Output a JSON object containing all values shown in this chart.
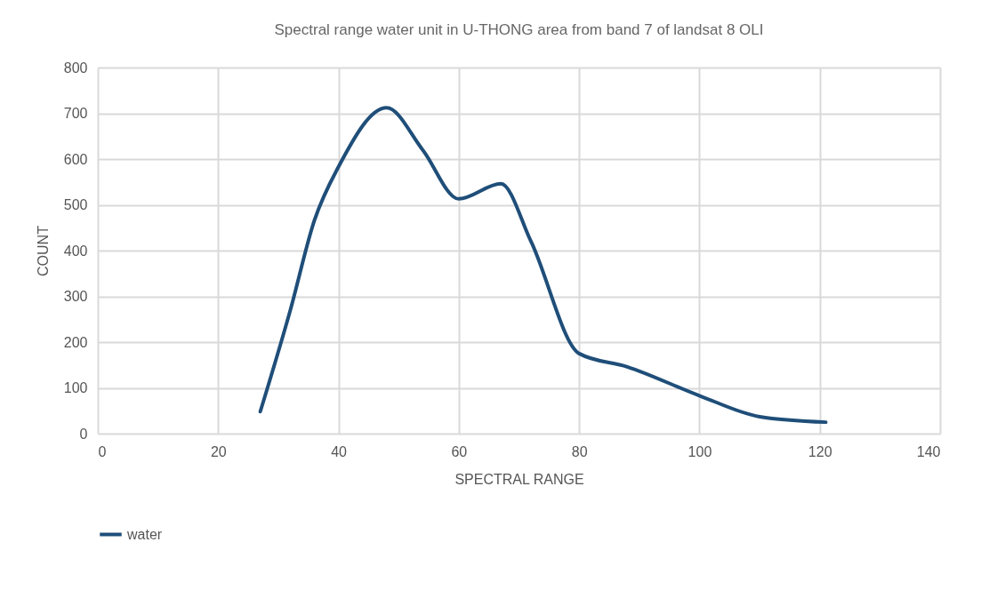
{
  "chart_data": {
    "type": "line",
    "title": "Spectral range water unit in U-THONG area from band 7 of landsat 8 OLI",
    "xlabel": "SPECTRAL RANGE",
    "ylabel": "COUNT",
    "x": [
      27,
      32,
      36,
      40,
      48,
      54,
      60,
      67,
      72,
      80,
      88,
      100,
      110,
      121
    ],
    "series": [
      {
        "name": "water",
        "color": "#1f4e79",
        "values": [
          48,
          270,
          466,
          583,
          712,
          620,
          513,
          546,
          420,
          175,
          146,
          83,
          37,
          25
        ]
      }
    ],
    "xlim": [
      0,
      140
    ],
    "xticks": [
      0,
      20,
      40,
      60,
      80,
      100,
      120,
      140
    ],
    "ylim": [
      0,
      800
    ],
    "yticks": [
      0,
      100,
      200,
      300,
      400,
      500,
      600,
      700,
      800
    ],
    "grid": true,
    "legend": "bottom",
    "marker": "none",
    "line_style": "solid"
  }
}
